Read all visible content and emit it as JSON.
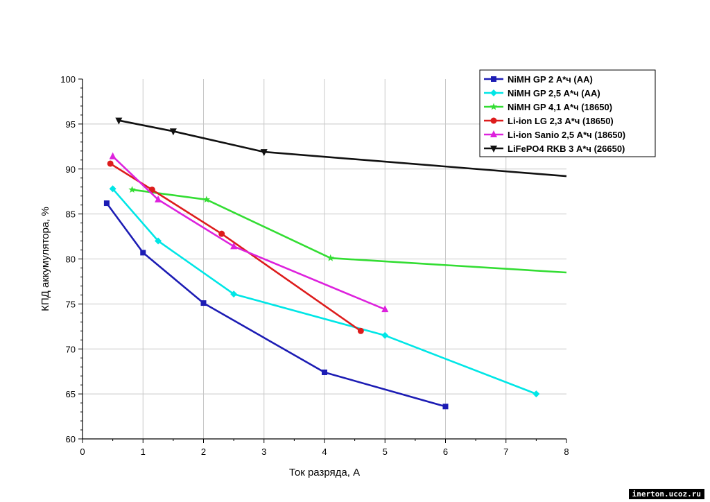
{
  "chart_data": {
    "type": "line",
    "title": "",
    "xlabel": "Ток разряда, А",
    "ylabel": "КПД аккумулятора, %",
    "xlim": [
      0,
      8
    ],
    "ylim": [
      60,
      100
    ],
    "xticks": [
      "0",
      "1",
      "2",
      "3",
      "4",
      "5",
      "6",
      "7",
      "8"
    ],
    "yticks": [
      "60",
      "65",
      "70",
      "75",
      "80",
      "85",
      "90",
      "95",
      "100"
    ],
    "grid": true,
    "legend_position": "top-right",
    "series": [
      {
        "name": "NiMH GP 2 А*ч (AA)",
        "color": "#1c1cb4",
        "marker": "square",
        "points": [
          [
            0.4,
            86.2
          ],
          [
            1.0,
            80.7
          ],
          [
            2.0,
            75.1
          ],
          [
            4.0,
            67.4
          ],
          [
            6.0,
            63.6
          ]
        ]
      },
      {
        "name": "NiMH GP 2,5 А*ч (AA)",
        "color": "#00e6e6",
        "marker": "diamond",
        "points": [
          [
            0.5,
            87.8
          ],
          [
            1.25,
            82.0
          ],
          [
            2.5,
            76.1
          ],
          [
            5.0,
            71.5
          ],
          [
            7.5,
            65.0
          ]
        ]
      },
      {
        "name": "NiMH GP 4,1 А*ч (18650)",
        "color": "#33dd33",
        "marker": "star",
        "points": [
          [
            0.82,
            87.7
          ],
          [
            2.05,
            86.6
          ],
          [
            4.1,
            80.1
          ],
          [
            8.0,
            78.5
          ]
        ]
      },
      {
        "name": "Li-ion LG 2,3 А*ч (18650)",
        "color": "#dd1c1c",
        "marker": "circle",
        "points": [
          [
            0.46,
            90.6
          ],
          [
            1.15,
            87.7
          ],
          [
            2.3,
            82.8
          ],
          [
            4.6,
            72.0
          ]
        ]
      },
      {
        "name": "Li-ion Sanio 2,5 А*ч (18650)",
        "color": "#dd22dd",
        "marker": "triangle-up",
        "points": [
          [
            0.5,
            91.4
          ],
          [
            1.25,
            86.6
          ],
          [
            2.5,
            81.4
          ],
          [
            5.0,
            74.4
          ]
        ]
      },
      {
        "name": "LiFePO4 RKB 3 А*ч (26650)",
        "color": "#111111",
        "marker": "triangle-down",
        "points": [
          [
            0.6,
            95.4
          ],
          [
            1.5,
            94.2
          ],
          [
            3.0,
            91.9
          ],
          [
            8.0,
            89.2
          ]
        ]
      }
    ]
  },
  "watermark": "inerton.ucoz.ru"
}
